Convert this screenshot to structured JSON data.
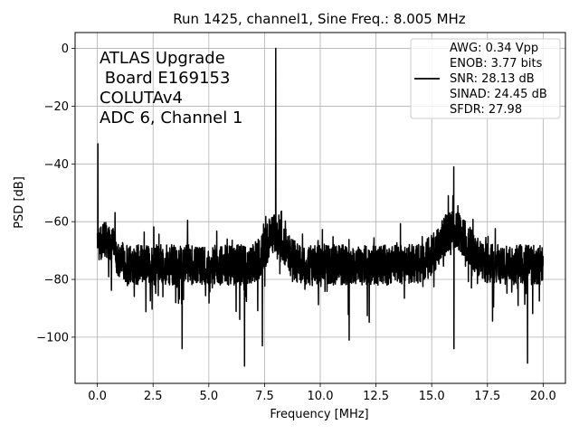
{
  "chart_data": {
    "type": "line",
    "title": "Run 1425, channel1, Sine Freq.: 8.005 MHz",
    "xlabel": "Frequency [MHz]",
    "ylabel": "PSD [dB]",
    "xlim": [
      -1.0,
      21.0
    ],
    "ylim": [
      -116,
      5.5
    ],
    "xticks": [
      0.0,
      2.5,
      5.0,
      7.5,
      10.0,
      12.5,
      15.0,
      17.5,
      20.0
    ],
    "xtick_labels": [
      "0.0",
      "2.5",
      "5.0",
      "7.5",
      "10.0",
      "12.5",
      "15.0",
      "17.5",
      "20.0"
    ],
    "yticks": [
      0,
      -20,
      -40,
      -60,
      -80,
      -100
    ],
    "ytick_labels": [
      "0",
      "−20",
      "−40",
      "−60",
      "−80",
      "−100"
    ],
    "grid": true,
    "line_color": "#000000",
    "annotation": [
      "ATLAS Upgrade",
      " Board E169153",
      "COLUTAv4",
      "ADC 6, Channel 1"
    ],
    "legend": {
      "placement": "upper-right",
      "lines": [
        "AWG: 0.34 Vpp",
        "ENOB: 3.77 bits",
        "SNR: 28.13 dB",
        "SINAD: 24.45 dB",
        "SFDR: 27.98"
      ]
    },
    "series": [
      {
        "name": "PSD",
        "noise_floor_db": -75,
        "noise_spread_db": 7,
        "x_range": [
          0.0,
          20.0
        ],
        "features": [
          {
            "x": 0.02,
            "y": -33,
            "label": "DC spike"
          },
          {
            "x": 8.005,
            "y": 0,
            "label": "fundamental"
          },
          {
            "x": 15.99,
            "y": -41,
            "label": "harmonic"
          }
        ],
        "deep_minima": [
          {
            "x": 3.8,
            "y": -104
          },
          {
            "x": 6.6,
            "y": -110
          },
          {
            "x": 7.4,
            "y": -103
          },
          {
            "x": 11.3,
            "y": -101
          },
          {
            "x": 16.0,
            "y": -104
          },
          {
            "x": 19.3,
            "y": -109
          }
        ]
      }
    ]
  }
}
